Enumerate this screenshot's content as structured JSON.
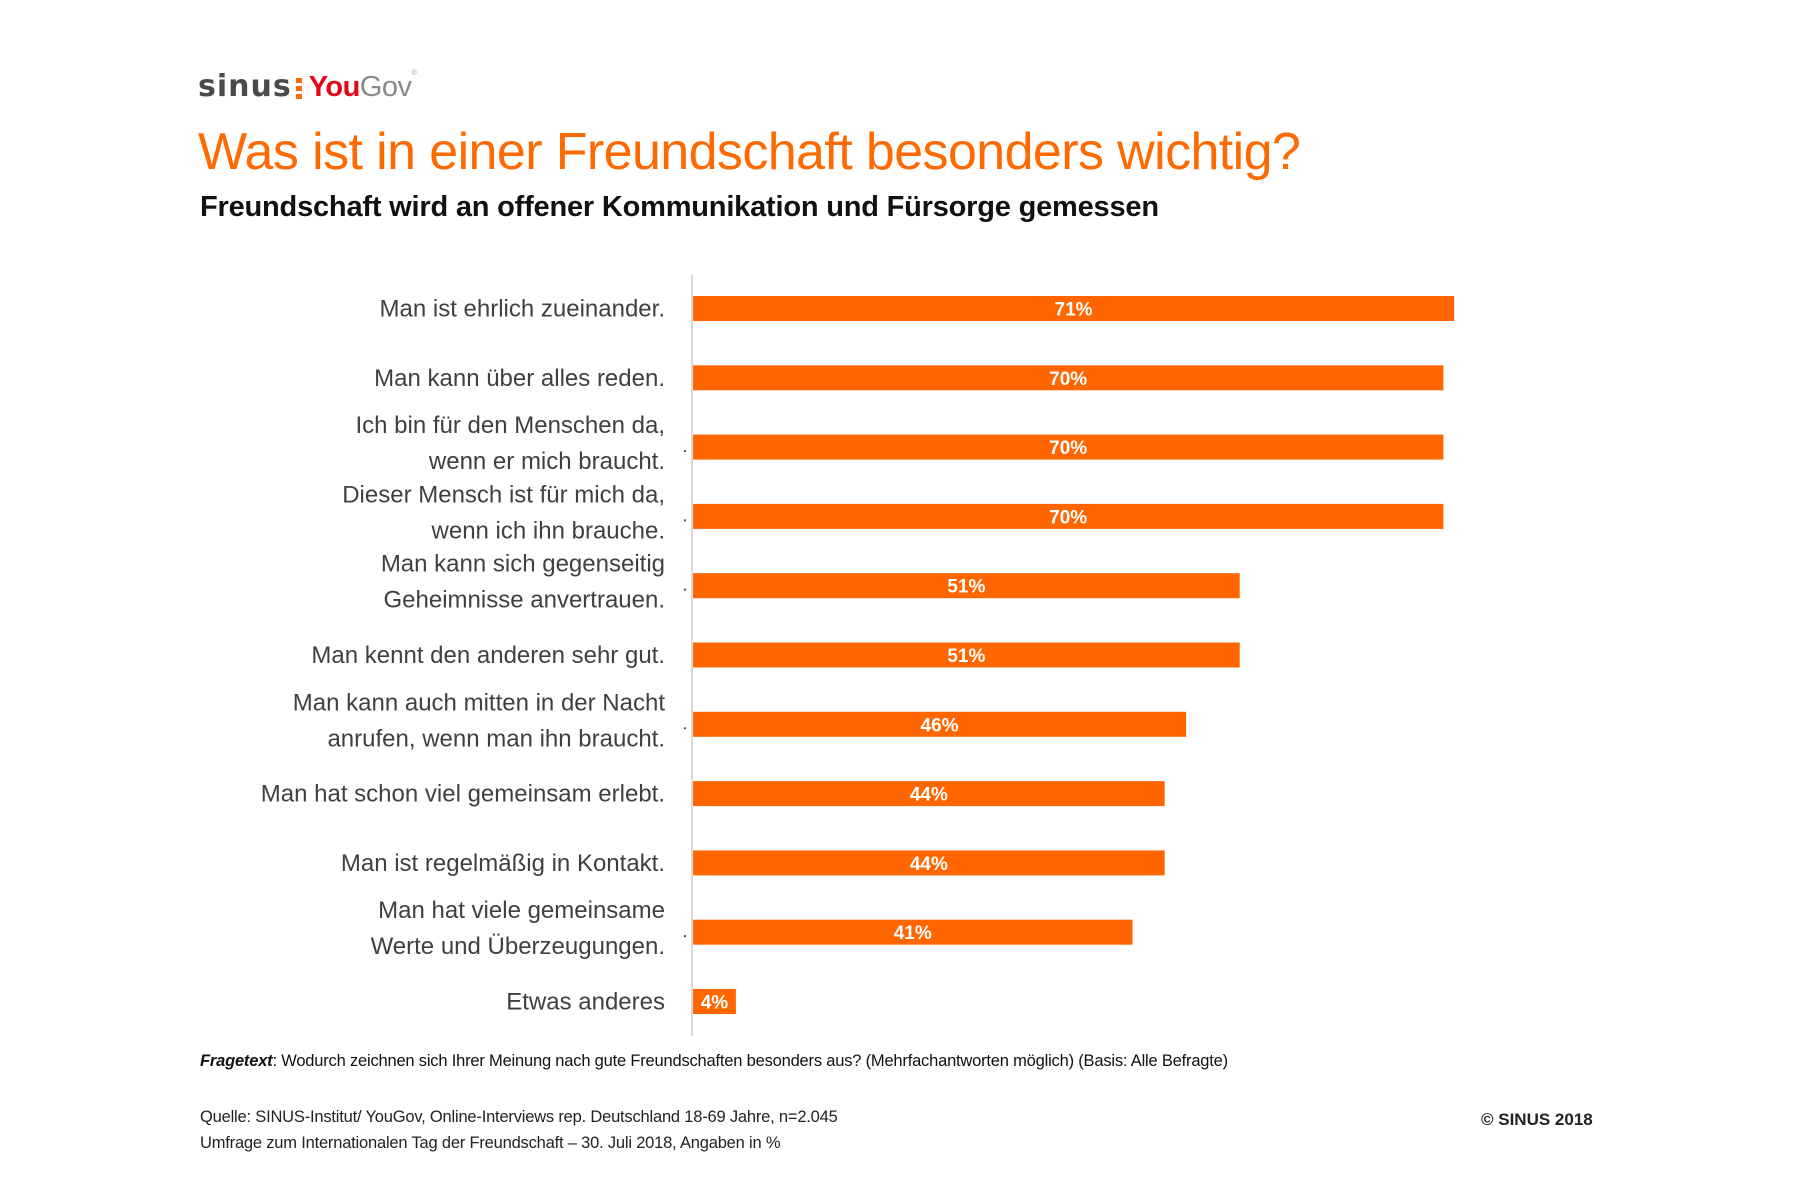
{
  "logo": {
    "part1": "sinus",
    "part2_red": "You",
    "part2_gray": "Gov",
    "registered": "®"
  },
  "header": {
    "title": "Was ist in einer Freundschaft besonders wichtig?",
    "subtitle": "Freundschaft wird an offener Kommunikation und Fürsorge gemessen"
  },
  "colors": {
    "bar": "#FF6600",
    "title": "#FF6A00",
    "label": "#404040",
    "axis": "#D9D9D9"
  },
  "chart_data": {
    "type": "bar",
    "orientation": "horizontal",
    "title": "Was ist in einer Freundschaft besonders wichtig?",
    "subtitle": "Freundschaft wird an offener Kommunikation und Fürsorge gemessen",
    "xlabel": "",
    "ylabel": "",
    "unit": "%",
    "xlim": [
      0,
      100
    ],
    "grid": false,
    "legend": "none",
    "categories": [
      [
        "Man ist ehrlich zueinander."
      ],
      [
        "Man kann über alles reden."
      ],
      [
        "Ich bin für den Menschen da,",
        "wenn er mich braucht."
      ],
      [
        "Dieser Mensch ist für mich da,",
        "wenn ich ihn brauche."
      ],
      [
        "Man kann sich gegenseitig",
        "Geheimnisse anvertrauen."
      ],
      [
        "Man kennt den anderen sehr gut."
      ],
      [
        "Man kann auch mitten in der Nacht",
        "anrufen, wenn man ihn braucht."
      ],
      [
        "Man hat schon viel gemeinsam erlebt."
      ],
      [
        "Man ist regelmäßig in Kontakt."
      ],
      [
        "Man hat viele gemeinsame",
        "Werte und Überzeugungen."
      ],
      [
        "Etwas anderes"
      ]
    ],
    "values": [
      71,
      70,
      70,
      70,
      51,
      51,
      46,
      44,
      44,
      41,
      4
    ],
    "value_labels": [
      "71%",
      "70%",
      "70%",
      "70%",
      "51%",
      "51%",
      "46%",
      "44%",
      "44%",
      "41%",
      "4%"
    ]
  },
  "footer": {
    "question_label": "Fragetext",
    "question_text": ":  Wodurch zeichnen sich Ihrer Meinung nach gute  Freundschaften besonders aus? (Mehrfachantworten  möglich) (Basis: Alle Befragte)",
    "source_line1": "Quelle: SINUS-Institut/ YouGov, Online-Interviews rep. Deutschland 18-69 Jahre, n=2.045",
    "source_line2": "Umfrage zum  Internationalen Tag der  Freundschaft  – 30. Juli 2018, Angaben  in %",
    "copyright": "© SINUS  2018"
  }
}
